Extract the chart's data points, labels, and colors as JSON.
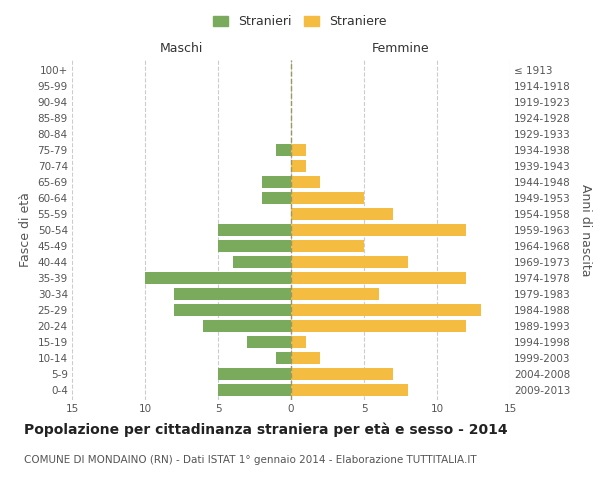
{
  "age_groups": [
    "0-4",
    "5-9",
    "10-14",
    "15-19",
    "20-24",
    "25-29",
    "30-34",
    "35-39",
    "40-44",
    "45-49",
    "50-54",
    "55-59",
    "60-64",
    "65-69",
    "70-74",
    "75-79",
    "80-84",
    "85-89",
    "90-94",
    "95-99",
    "100+"
  ],
  "birth_years": [
    "2009-2013",
    "2004-2008",
    "1999-2003",
    "1994-1998",
    "1989-1993",
    "1984-1988",
    "1979-1983",
    "1974-1978",
    "1969-1973",
    "1964-1968",
    "1959-1963",
    "1954-1958",
    "1949-1953",
    "1944-1948",
    "1939-1943",
    "1934-1938",
    "1929-1933",
    "1924-1928",
    "1919-1923",
    "1914-1918",
    "≤ 1913"
  ],
  "maschi": [
    5,
    5,
    1,
    3,
    6,
    8,
    8,
    10,
    4,
    5,
    5,
    0,
    2,
    2,
    0,
    1,
    0,
    0,
    0,
    0,
    0
  ],
  "femmine": [
    8,
    7,
    2,
    1,
    12,
    13,
    6,
    12,
    8,
    5,
    12,
    7,
    5,
    2,
    1,
    1,
    0,
    0,
    0,
    0,
    0
  ],
  "maschi_color": "#7aaa5c",
  "femmine_color": "#f5bc42",
  "background_color": "#ffffff",
  "grid_color": "#cccccc",
  "center_line_color": "#999966",
  "title": "Popolazione per cittadinanza straniera per età e sesso - 2014",
  "subtitle": "COMUNE DI MONDAINO (RN) - Dati ISTAT 1° gennaio 2014 - Elaborazione TUTTITALIA.IT",
  "xlabel_left": "Maschi",
  "xlabel_right": "Femmine",
  "ylabel_left": "Fasce di età",
  "ylabel_right": "Anni di nascita",
  "legend_stranieri": "Stranieri",
  "legend_straniere": "Straniere",
  "xlim": 15,
  "xticks": [
    -15,
    -10,
    -5,
    0,
    5,
    10,
    15
  ],
  "title_fontsize": 10,
  "subtitle_fontsize": 7.5,
  "tick_fontsize": 7.5,
  "label_fontsize": 9,
  "legend_fontsize": 9,
  "bar_height": 0.75
}
